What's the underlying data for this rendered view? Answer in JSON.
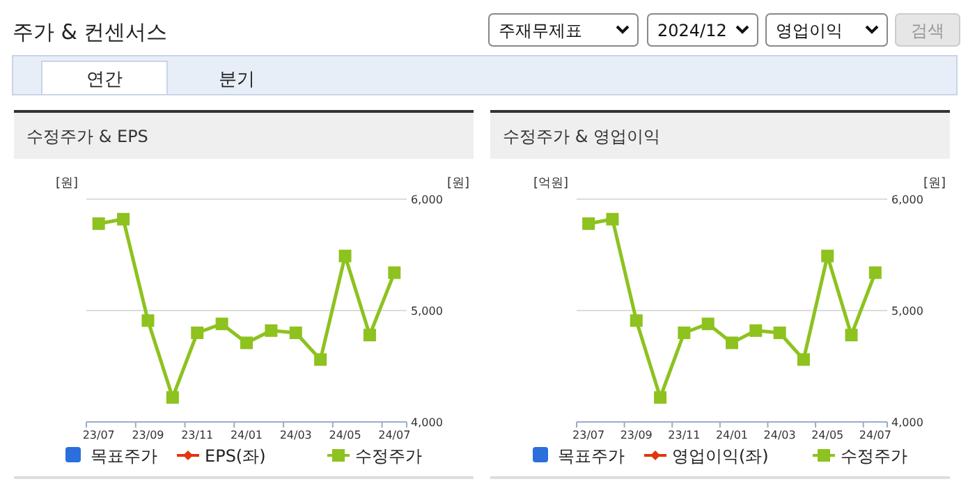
{
  "chart_data": [
    {
      "type": "other",
      "title": "주가 & 컨센서스",
      "annotations": [
        "주재무제표",
        "2024/12",
        "영업이익",
        "검색",
        "연간",
        "분기"
      ]
    },
    {
      "type": "line",
      "title": "수정주가 & EPS",
      "ylabel": "[원]",
      "y2label": "[원]",
      "categories": [
        "23/07",
        null,
        "23/09",
        null,
        "23/11",
        null,
        "24/01",
        null,
        "24/03",
        null,
        "24/05",
        null,
        "24/07"
      ],
      "y2lim": [
        4000,
        6000
      ],
      "y2ticks": [
        {
          "value": 4000,
          "label": "4,000"
        },
        {
          "value": 5000,
          "label": "5,000"
        },
        {
          "value": 6000,
          "label": "6,000"
        }
      ],
      "grid": "y",
      "legend": "bottom",
      "series": [
        {
          "name": "목표주가",
          "type": "bar",
          "color": "#2a6fdb",
          "values": [
            null,
            null,
            null,
            null,
            null,
            null,
            null,
            null,
            null,
            null,
            null,
            null,
            null
          ]
        },
        {
          "name": "EPS(좌)",
          "color": "#e2360e",
          "marker": "diamond",
          "values": [
            null,
            null,
            null,
            null,
            null,
            null,
            null,
            null,
            null,
            null,
            null,
            null,
            null
          ]
        },
        {
          "name": "수정주가",
          "color": "#8dc21f",
          "marker": "square",
          "axis": "y2",
          "values": [
            5780,
            5820,
            4910,
            4220,
            4800,
            4880,
            4710,
            4820,
            4800,
            4560,
            5490,
            4780,
            5340
          ]
        }
      ]
    },
    {
      "type": "line",
      "title": "수정주가 & 영업이익",
      "ylabel": "[억원]",
      "y2label": "[원]",
      "categories": [
        "23/07",
        null,
        "23/09",
        null,
        "23/11",
        null,
        "24/01",
        null,
        "24/03",
        null,
        "24/05",
        null,
        "24/07"
      ],
      "y2lim": [
        4000,
        6000
      ],
      "y2ticks": [
        {
          "value": 4000,
          "label": "4,000"
        },
        {
          "value": 5000,
          "label": "5,000"
        },
        {
          "value": 6000,
          "label": "6,000"
        }
      ],
      "grid": "y",
      "legend": "bottom",
      "series": [
        {
          "name": "목표주가",
          "type": "bar",
          "color": "#2a6fdb",
          "values": [
            null,
            null,
            null,
            null,
            null,
            null,
            null,
            null,
            null,
            null,
            null,
            null,
            null
          ]
        },
        {
          "name": "영업이익(좌)",
          "color": "#e2360e",
          "marker": "diamond",
          "values": [
            null,
            null,
            null,
            null,
            null,
            null,
            null,
            null,
            null,
            null,
            null,
            null,
            null
          ]
        },
        {
          "name": "수정주가",
          "color": "#8dc21f",
          "marker": "square",
          "axis": "y2",
          "values": [
            5780,
            5820,
            4910,
            4220,
            4800,
            4880,
            4710,
            4820,
            4800,
            4560,
            5490,
            4780,
            5340
          ]
        }
      ]
    }
  ]
}
